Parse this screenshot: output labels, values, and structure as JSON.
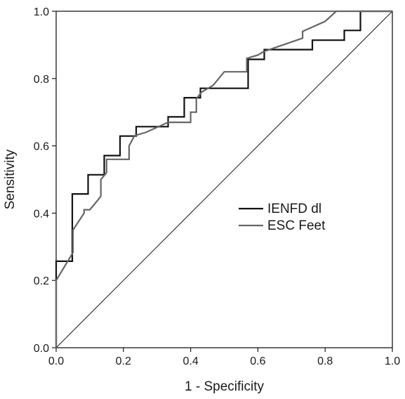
{
  "chart_data": {
    "type": "line",
    "title": "",
    "xlabel": "1 - Specificity",
    "ylabel": "Sensitivity",
    "xlim": [
      0,
      1
    ],
    "ylim": [
      0,
      1
    ],
    "x_ticks": [
      "0.0",
      "0.2",
      "0.4",
      "0.6",
      "0.8",
      "1.0"
    ],
    "y_ticks": [
      "0.0",
      "0.2",
      "0.4",
      "0.6",
      "0.8",
      "1.0"
    ],
    "grid": false,
    "legend_position": "center-right",
    "reference_line": {
      "from": [
        0,
        0
      ],
      "to": [
        1,
        1
      ]
    },
    "series": [
      {
        "name": "IENFD dl",
        "color": "#111111",
        "x": [
          0.0,
          0.0,
          0.048,
          0.048,
          0.095,
          0.095,
          0.143,
          0.143,
          0.19,
          0.19,
          0.238,
          0.238,
          0.333,
          0.333,
          0.381,
          0.381,
          0.429,
          0.429,
          0.571,
          0.571,
          0.619,
          0.619,
          0.762,
          0.762,
          0.857,
          0.857,
          0.905,
          0.905,
          1.0
        ],
        "y": [
          0.0,
          0.257,
          0.257,
          0.457,
          0.457,
          0.514,
          0.514,
          0.571,
          0.571,
          0.629,
          0.629,
          0.657,
          0.657,
          0.686,
          0.686,
          0.743,
          0.743,
          0.771,
          0.771,
          0.857,
          0.857,
          0.886,
          0.886,
          0.914,
          0.914,
          0.943,
          0.943,
          1.0,
          1.0
        ]
      },
      {
        "name": "ESC Feet",
        "color": "#666666",
        "x": [
          0.0,
          0.0,
          0.05,
          0.05,
          0.083,
          0.083,
          0.1,
          0.117,
          0.117,
          0.133,
          0.133,
          0.15,
          0.15,
          0.2,
          0.217,
          0.217,
          0.233,
          0.267,
          0.333,
          0.4,
          0.4,
          0.417,
          0.417,
          0.433,
          0.467,
          0.5,
          0.567,
          0.567,
          0.6,
          0.617,
          0.733,
          0.733,
          0.8,
          0.833,
          1.0
        ],
        "y": [
          0.0,
          0.2,
          0.283,
          0.35,
          0.4,
          0.41,
          0.41,
          0.43,
          0.43,
          0.45,
          0.5,
          0.52,
          0.56,
          0.56,
          0.56,
          0.6,
          0.63,
          0.64,
          0.67,
          0.67,
          0.7,
          0.7,
          0.74,
          0.76,
          0.78,
          0.82,
          0.82,
          0.86,
          0.87,
          0.88,
          0.92,
          0.94,
          0.97,
          1.0,
          1.0
        ]
      }
    ]
  }
}
